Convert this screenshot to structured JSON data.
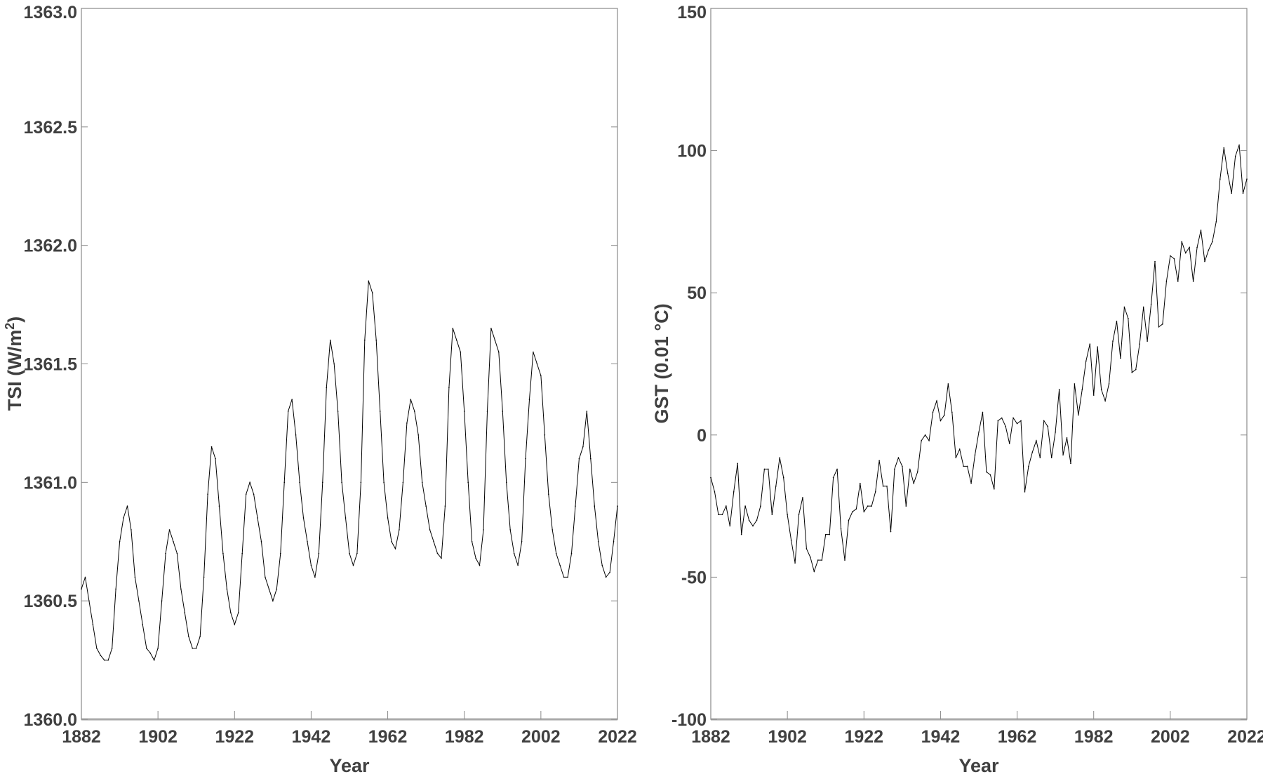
{
  "chart_data": [
    {
      "type": "line",
      "title": "",
      "xlabel": "Year",
      "ylabel": "TSI (W/m",
      "ylabel_sup": "2",
      "ylabel_end": ")",
      "xlim": [
        1882,
        2022
      ],
      "ylim": [
        1360.0,
        1363.0
      ],
      "xticks": [
        "1882",
        "1902",
        "1922",
        "1942",
        "1962",
        "1982",
        "2002",
        "2022"
      ],
      "yticks": [
        "1360.0",
        "1360.5",
        "1361.0",
        "1361.5",
        "1362.0",
        "1362.5",
        "1363.0"
      ],
      "grid": false,
      "line_color": "#000000",
      "x_start": 1882,
      "values": [
        1360.55,
        1360.6,
        1360.5,
        1360.4,
        1360.3,
        1360.27,
        1360.25,
        1360.25,
        1360.3,
        1360.55,
        1360.75,
        1360.85,
        1360.9,
        1360.8,
        1360.6,
        1360.5,
        1360.4,
        1360.3,
        1360.28,
        1360.25,
        1360.3,
        1360.5,
        1360.7,
        1360.8,
        1360.75,
        1360.7,
        1360.55,
        1360.45,
        1360.35,
        1360.3,
        1360.3,
        1360.35,
        1360.6,
        1360.95,
        1361.15,
        1361.1,
        1360.9,
        1360.7,
        1360.55,
        1360.45,
        1360.4,
        1360.45,
        1360.7,
        1360.95,
        1361.0,
        1360.95,
        1360.85,
        1360.75,
        1360.6,
        1360.55,
        1360.5,
        1360.55,
        1360.7,
        1361.0,
        1361.3,
        1361.35,
        1361.2,
        1361.0,
        1360.85,
        1360.75,
        1360.65,
        1360.6,
        1360.7,
        1361.0,
        1361.4,
        1361.6,
        1361.5,
        1361.3,
        1361.0,
        1360.85,
        1360.7,
        1360.65,
        1360.7,
        1361.0,
        1361.6,
        1361.85,
        1361.8,
        1361.6,
        1361.3,
        1361.0,
        1360.85,
        1360.75,
        1360.72,
        1360.8,
        1361.0,
        1361.25,
        1361.35,
        1361.3,
        1361.2,
        1361.0,
        1360.9,
        1360.8,
        1360.75,
        1360.7,
        1360.68,
        1360.9,
        1361.4,
        1361.65,
        1361.6,
        1361.55,
        1361.3,
        1361.0,
        1360.75,
        1360.68,
        1360.65,
        1360.8,
        1361.3,
        1361.65,
        1361.6,
        1361.55,
        1361.3,
        1361.0,
        1360.8,
        1360.7,
        1360.65,
        1360.75,
        1361.1,
        1361.35,
        1361.55,
        1361.5,
        1361.45,
        1361.2,
        1360.95,
        1360.8,
        1360.7,
        1360.65,
        1360.6,
        1360.6,
        1360.7,
        1360.9,
        1361.1,
        1361.15,
        1361.3,
        1361.1,
        1360.9,
        1360.75,
        1360.65,
        1360.6,
        1360.62,
        1360.75,
        1360.9
      ]
    },
    {
      "type": "line",
      "title": "",
      "xlabel": "Year",
      "ylabel": "GST (0.01 °C)",
      "xlim": [
        1882,
        2022
      ],
      "ylim": [
        -100,
        150
      ],
      "xticks": [
        "1882",
        "1902",
        "1922",
        "1942",
        "1962",
        "1982",
        "2002",
        "2022"
      ],
      "yticks": [
        "-100",
        "-50",
        "0",
        "50",
        "100",
        "150"
      ],
      "grid": false,
      "line_color": "#000000",
      "x_start": 1882,
      "values": [
        -15,
        -20,
        -28,
        -28,
        -25,
        -32,
        -20,
        -10,
        -35,
        -25,
        -30,
        -32,
        -30,
        -25,
        -12,
        -12,
        -28,
        -18,
        -8,
        -15,
        -28,
        -37,
        -45,
        -28,
        -22,
        -40,
        -43,
        -48,
        -44,
        -44,
        -35,
        -35,
        -15,
        -12,
        -33,
        -44,
        -30,
        -27,
        -26,
        -17,
        -27,
        -25,
        -25,
        -20,
        -9,
        -18,
        -18,
        -34,
        -12,
        -8,
        -11,
        -25,
        -12,
        -17,
        -13,
        -2,
        0,
        -2,
        8,
        12,
        5,
        7,
        18,
        8,
        -8,
        -5,
        -11,
        -11,
        -17,
        -7,
        1,
        8,
        -13,
        -14,
        -19,
        5,
        6,
        3,
        -3,
        6,
        4,
        5,
        -20,
        -11,
        -6,
        -2,
        -8,
        5,
        3,
        -8,
        1,
        16,
        -7,
        -1,
        -10,
        18,
        7,
        16,
        26,
        32,
        14,
        31,
        16,
        12,
        18,
        33,
        40,
        27,
        45,
        41,
        22,
        23,
        32,
        45,
        33,
        46,
        61,
        38,
        39,
        54,
        63,
        62,
        54,
        68,
        64,
        66,
        54,
        66,
        72,
        61,
        65,
        68,
        75,
        90,
        101,
        92,
        85,
        98,
        102,
        85,
        90
      ]
    }
  ]
}
